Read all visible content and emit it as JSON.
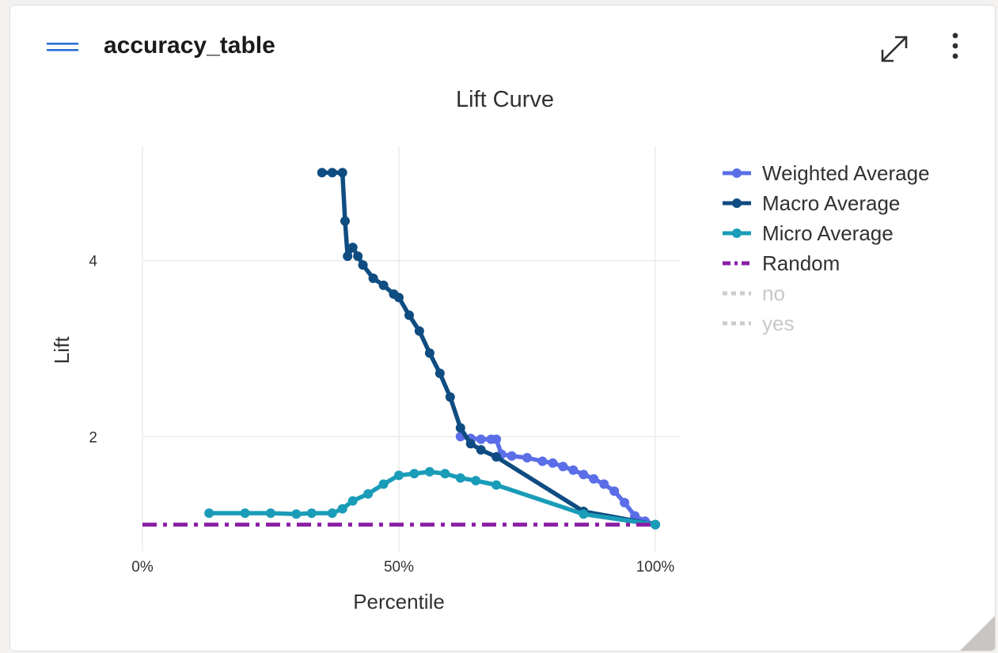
{
  "card": {
    "title": "accuracy_table"
  },
  "icons": {
    "menu": "hamburger-menu-icon",
    "expand": "expand-icon",
    "more": "more-vertical-icon",
    "resize": "resize-grip-icon"
  },
  "chart_data": {
    "type": "line",
    "title": "Lift Curve",
    "xlabel": "Percentile",
    "ylabel": "Lift",
    "xlim": [
      0,
      1
    ],
    "ylim": [
      0.7,
      5.3
    ],
    "x_ticks": [
      {
        "value": 0,
        "label": "0%"
      },
      {
        "value": 0.5,
        "label": "50%"
      },
      {
        "value": 1,
        "label": "100%"
      }
    ],
    "y_ticks": [
      {
        "value": 2,
        "label": "2"
      },
      {
        "value": 4,
        "label": "4"
      }
    ],
    "grid": true,
    "legend_position": "right",
    "series": [
      {
        "name": "Weighted Average",
        "color": "#5b6ee8",
        "style": "solid",
        "visible": true,
        "x": [
          0.62,
          0.64,
          0.66,
          0.68,
          0.69,
          0.7,
          0.72,
          0.75,
          0.78,
          0.8,
          0.82,
          0.84,
          0.86,
          0.88,
          0.9,
          0.92,
          0.94,
          0.96,
          0.98,
          1.0
        ],
        "y": [
          2.0,
          1.98,
          1.97,
          1.97,
          1.97,
          1.8,
          1.78,
          1.76,
          1.72,
          1.7,
          1.66,
          1.62,
          1.57,
          1.52,
          1.46,
          1.38,
          1.25,
          1.1,
          1.04,
          1.0
        ]
      },
      {
        "name": "Macro Average",
        "color": "#0f4c81",
        "style": "solid",
        "visible": true,
        "x": [
          0.35,
          0.37,
          0.39,
          0.395,
          0.4,
          0.41,
          0.42,
          0.43,
          0.45,
          0.47,
          0.49,
          0.5,
          0.52,
          0.54,
          0.56,
          0.58,
          0.6,
          0.62,
          0.64,
          0.66,
          0.69,
          0.86,
          1.0
        ],
        "y": [
          5.0,
          5.0,
          5.0,
          4.45,
          4.05,
          4.15,
          4.05,
          3.95,
          3.8,
          3.72,
          3.62,
          3.58,
          3.38,
          3.2,
          2.95,
          2.72,
          2.45,
          2.1,
          1.92,
          1.85,
          1.77,
          1.15,
          1.0
        ]
      },
      {
        "name": "Micro Average",
        "color": "#1a9cb8",
        "style": "solid",
        "visible": true,
        "x": [
          0.13,
          0.2,
          0.25,
          0.3,
          0.33,
          0.37,
          0.39,
          0.41,
          0.44,
          0.47,
          0.5,
          0.53,
          0.56,
          0.59,
          0.62,
          0.65,
          0.69,
          0.86,
          1.0
        ],
        "y": [
          1.13,
          1.13,
          1.13,
          1.12,
          1.13,
          1.13,
          1.18,
          1.27,
          1.35,
          1.46,
          1.56,
          1.58,
          1.6,
          1.58,
          1.53,
          1.5,
          1.45,
          1.12,
          1.0
        ]
      },
      {
        "name": "Random",
        "color": "#8a1fa5",
        "style": "dashdot",
        "visible": true,
        "x": [
          0,
          1.0
        ],
        "y": [
          1.0,
          1.0
        ]
      },
      {
        "name": "no",
        "color": "#cccccc",
        "style": "dotted",
        "visible": false,
        "x": [],
        "y": []
      },
      {
        "name": "yes",
        "color": "#cccccc",
        "style": "dotted",
        "visible": false,
        "x": [],
        "y": []
      }
    ]
  }
}
